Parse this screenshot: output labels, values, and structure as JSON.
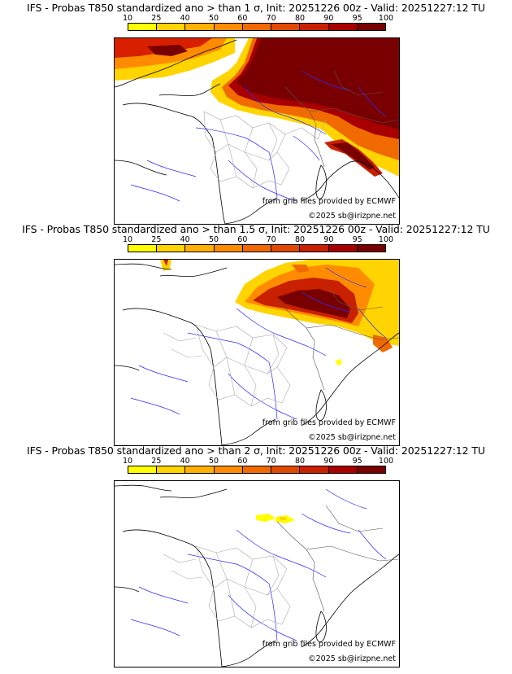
{
  "colorbar": {
    "ticks": [
      "10",
      "25",
      "40",
      "50",
      "60",
      "70",
      "80",
      "90",
      "95",
      "100"
    ],
    "colors": [
      "#ffff00",
      "#ffd400",
      "#ffb000",
      "#ff8c00",
      "#f06a00",
      "#e04a00",
      "#c82000",
      "#a80000",
      "#780000"
    ]
  },
  "panels": [
    {
      "title": "IFS - Probas T850  standardized ano > than 1 σ, Init: 20251226 00z - Valid: 20251227:12 TU",
      "credit_source": "from grib files provided by ECMWF",
      "credit_copyright": "©2025 sb@irizpne.net"
    },
    {
      "title": "IFS - Probas T850  standardized ano > than 1.5 σ, Init: 20251226 00z - Valid: 20251227:12 TU",
      "credit_source": "from grib files provided by ECMWF",
      "credit_copyright": "©2025 sb@irizpne.net"
    },
    {
      "title": "IFS - Probas T850  standardized ano > than 2 σ, Init: 20251226 00z - Valid: 20251227:12 TU",
      "credit_source": "from grib files provided by ECMWF",
      "credit_copyright": "©2025 sb@irizpne.net"
    }
  ]
}
